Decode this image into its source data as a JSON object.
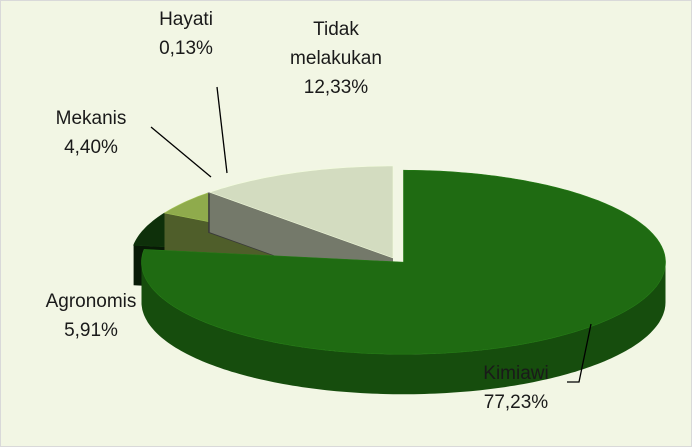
{
  "chart_data": {
    "type": "pie",
    "categories": [
      "Kimiawi",
      "Agronomis",
      "Mekanis",
      "Hayati",
      "Tidak melakukan"
    ],
    "values": [
      77.23,
      5.91,
      4.4,
      0.13,
      12.33
    ],
    "value_labels": [
      "77,23%",
      "5,91%",
      "4,40%",
      "0,13%",
      "12,33%"
    ],
    "colors": [
      "#1f6b12",
      "#0e300a",
      "#8fab4c",
      "#6a6a6a",
      "#d3dcc0"
    ],
    "explode": [
      16,
      0,
      0,
      0,
      0
    ]
  }
}
